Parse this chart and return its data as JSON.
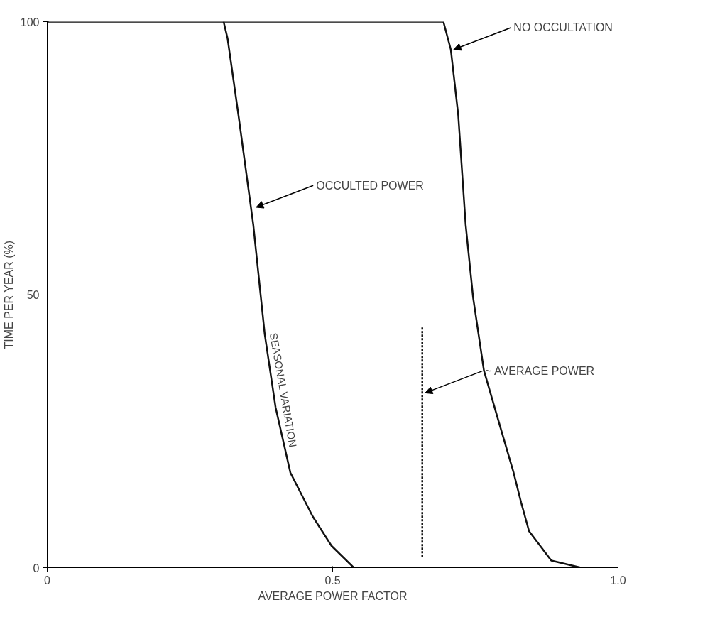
{
  "chart_data": {
    "type": "line",
    "xlabel": "AVERAGE POWER FACTOR",
    "ylabel": "TIME PER YEAR (%)",
    "xlim": [
      0,
      1.0
    ],
    "ylim": [
      0,
      100
    ],
    "xticks": [
      0,
      0.5,
      {
        "value": 1.0,
        "label": "1.0"
      }
    ],
    "yticks": [
      0,
      50,
      100
    ],
    "grid": false,
    "marker": "none",
    "line_style": "solid",
    "series": [
      {
        "color": "#111111",
        "x": [
          0.309,
          0.316,
          0.335,
          0.361,
          0.381,
          0.4,
          0.426,
          0.465,
          0.498,
          0.537
        ],
        "values": [
          100,
          96.9,
          82.9,
          62.8,
          42.8,
          29.4,
          17.4,
          9.4,
          4.0,
          0
        ]
      },
      {
        "color": "#111111",
        "x": [
          0.0,
          0.694,
          0.707,
          0.72,
          0.733,
          0.746,
          0.765,
          0.791,
          0.817,
          0.83,
          0.844,
          0.883,
          0.935
        ],
        "values": [
          100,
          100,
          94.9,
          82.9,
          62.8,
          49.5,
          36.1,
          26.7,
          17.4,
          12.0,
          6.7,
          1.3,
          0
        ]
      },
      {
        "color": "#111111",
        "line_style": "dashed",
        "x": [
          0.657,
          0.657
        ],
        "values": [
          44,
          2
        ]
      }
    ],
    "annotations": [
      {
        "text": "NO OCCULTATION",
        "x": 0.707,
        "y": 94.9
      },
      {
        "text": "OCCULTED POWER",
        "x": 0.361,
        "y": 66
      },
      {
        "text": "~ AVERAGE POWER",
        "x": 0.657,
        "y": 32
      },
      "SEASONAL VARIATION"
    ]
  }
}
